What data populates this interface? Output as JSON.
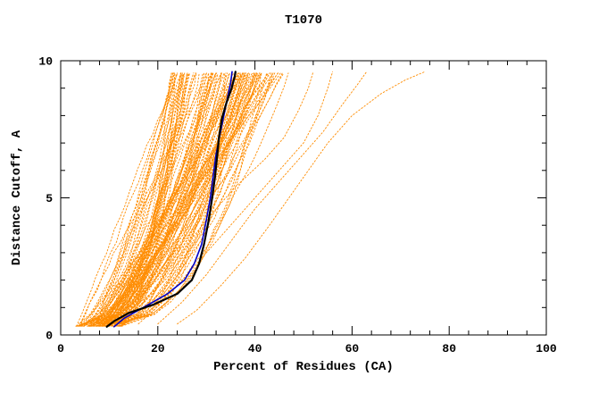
{
  "chart_data": {
    "type": "line",
    "title": "T1070",
    "xlabel": "Percent of Residues (CA)",
    "ylabel": "Distance Cutoff, A",
    "xlim": [
      0,
      100
    ],
    "ylim": [
      0,
      10
    ],
    "x_major_ticks": [
      0,
      20,
      40,
      60,
      80,
      100
    ],
    "x_minor_step": 4,
    "y_major_ticks": [
      0,
      5,
      10
    ],
    "y_minor_step": 1,
    "grid": false,
    "legend": "none",
    "colors": {
      "ensemble": "#ff8c00",
      "model_black": "#000000",
      "model_blue": "#0000c8",
      "axis": "#000000",
      "background": "#ffffff"
    },
    "highlight_series": [
      {
        "name": "model-blue",
        "color_key": "model_blue",
        "width": 1.6,
        "points": [
          [
            11,
            0.3
          ],
          [
            13,
            0.6
          ],
          [
            17,
            1.0
          ],
          [
            22,
            1.5
          ],
          [
            25.5,
            2.0
          ],
          [
            27.5,
            2.6
          ],
          [
            29,
            3.3
          ],
          [
            30,
            4.2
          ],
          [
            30.8,
            5.0
          ],
          [
            31.4,
            5.8
          ],
          [
            32.0,
            6.6
          ],
          [
            32.8,
            7.3
          ],
          [
            33.6,
            8.0
          ],
          [
            34.4,
            8.7
          ],
          [
            35.0,
            9.2
          ],
          [
            35.3,
            9.6
          ]
        ]
      },
      {
        "name": "model-black",
        "color_key": "model_black",
        "width": 2.2,
        "points": [
          [
            9.5,
            0.3
          ],
          [
            11,
            0.5
          ],
          [
            14,
            0.8
          ],
          [
            19,
            1.1
          ],
          [
            24,
            1.5
          ],
          [
            27,
            2.0
          ],
          [
            28.5,
            2.6
          ],
          [
            29.5,
            3.3
          ],
          [
            30.5,
            4.2
          ],
          [
            31.2,
            5.0
          ],
          [
            31.8,
            5.8
          ],
          [
            32.2,
            6.5
          ],
          [
            32.6,
            7.2
          ],
          [
            33.2,
            7.9
          ],
          [
            34.2,
            8.5
          ],
          [
            35.2,
            9.0
          ],
          [
            35.8,
            9.4
          ],
          [
            36.0,
            9.6
          ]
        ]
      }
    ],
    "outlier_series": [
      {
        "points": [
          [
            24,
            0.4
          ],
          [
            28,
            0.9
          ],
          [
            33,
            1.8
          ],
          [
            38,
            2.8
          ],
          [
            43,
            4.0
          ],
          [
            47,
            5.0
          ],
          [
            51,
            6.0
          ],
          [
            55,
            7.0
          ],
          [
            60,
            8.0
          ],
          [
            66,
            8.8
          ],
          [
            71,
            9.3
          ],
          [
            75,
            9.6
          ]
        ]
      },
      {
        "points": [
          [
            20,
            0.4
          ],
          [
            25,
            1.2
          ],
          [
            30,
            2.2
          ],
          [
            35,
            3.4
          ],
          [
            40,
            4.6
          ],
          [
            45,
            5.6
          ],
          [
            50,
            6.6
          ],
          [
            54,
            7.4
          ],
          [
            58,
            8.4
          ],
          [
            61,
            9.1
          ],
          [
            63,
            9.6
          ]
        ]
      },
      {
        "points": [
          [
            16,
            0.4
          ],
          [
            21,
            1.2
          ],
          [
            27,
            2.4
          ],
          [
            33,
            3.6
          ],
          [
            39,
            4.8
          ],
          [
            45,
            6.0
          ],
          [
            50,
            7.0
          ],
          [
            53,
            8.0
          ],
          [
            55,
            9.0
          ],
          [
            56,
            9.6
          ]
        ]
      },
      {
        "points": [
          [
            13,
            0.4
          ],
          [
            18,
            1.4
          ],
          [
            24,
            2.8
          ],
          [
            30,
            4.2
          ],
          [
            36,
            5.4
          ],
          [
            42,
            6.4
          ],
          [
            46,
            7.2
          ],
          [
            49,
            8.2
          ],
          [
            51,
            9.0
          ],
          [
            52,
            9.6
          ]
        ]
      }
    ],
    "ensemble": {
      "count": 115,
      "seed": 7,
      "y_bottom": 0.32,
      "y_top": 9.55,
      "x_start_min": 3,
      "x_start_max": 13,
      "x_end_min": 23,
      "x_end_max": 46,
      "exp_min": 0.38,
      "exp_max": 1.0,
      "wiggle": 1.2,
      "samples": 22
    }
  }
}
